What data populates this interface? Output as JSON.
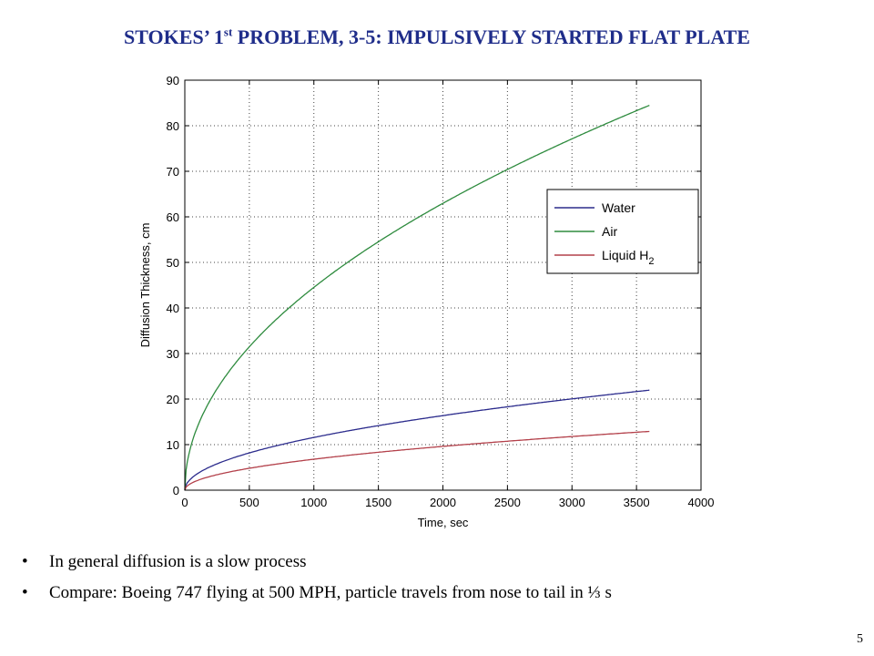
{
  "slide": {
    "title_main": "STOKES’ 1",
    "title_sup": "st",
    "title_rest": " PROBLEM, 3-5: IMPULSIVELY STARTED FLAT PLATE",
    "title_color": "#1f2d8a",
    "bullets": [
      "In general diffusion is a slow process",
      "Compare: Boeing 747 flying at 500 MPH, particle travels from nose to tail in ⅓ s"
    ],
    "bullet_glyph": "•",
    "page_number": "5"
  },
  "chart_data": {
    "type": "line",
    "title": "",
    "xlabel": "Time, sec",
    "ylabel": "Diffusion Thickness, cm",
    "xlim": [
      0,
      4000
    ],
    "ylim": [
      0,
      90
    ],
    "xticks": [
      0,
      500,
      1000,
      1500,
      2000,
      2500,
      3000,
      3500,
      4000
    ],
    "yticks": [
      0,
      10,
      20,
      30,
      40,
      50,
      60,
      70,
      80,
      90
    ],
    "grid": true,
    "grid_style": "dotted",
    "legend_position": "right",
    "x_end": 3600,
    "series": [
      {
        "name": "Water",
        "color": "#2b2b8c",
        "coef": 0.366
      },
      {
        "name": "Air",
        "color": "#2e8b3e",
        "coef": 1.408
      },
      {
        "name": "Liquid H",
        "name_sub": "2",
        "color": "#b3404a",
        "coef": 0.215
      }
    ],
    "series_model": "y = coef * sqrt(x)"
  }
}
